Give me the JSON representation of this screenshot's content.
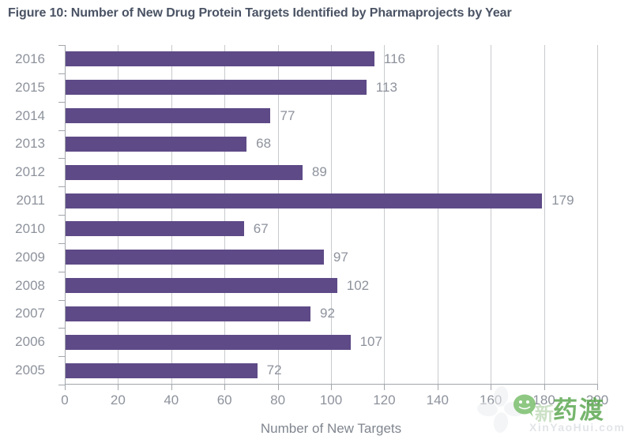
{
  "figure": {
    "title": "Figure 10: Number of New Drug Protein Targets Identified by Pharmaprojects by Year"
  },
  "chart_data": {
    "type": "bar",
    "orientation": "horizontal",
    "title": "Figure 10: Number of New Drug Protein Targets Identified by Pharmaprojects by Year",
    "categories": [
      "2016",
      "2015",
      "2014",
      "2013",
      "2012",
      "2011",
      "2010",
      "2009",
      "2008",
      "2007",
      "2006",
      "2005"
    ],
    "values": [
      116,
      113,
      77,
      68,
      89,
      179,
      67,
      97,
      102,
      92,
      107,
      72
    ],
    "xlabel": "Number of New Targets",
    "ylabel": "",
    "xlim": [
      0,
      200
    ],
    "xticks": [
      0,
      20,
      40,
      60,
      80,
      100,
      120,
      140,
      160,
      180,
      200
    ],
    "grid": "vertical gridlines only",
    "legend": "none",
    "colors": {
      "bar": "#5e4a87",
      "gridline": "#c8cacd",
      "axis": "#a2a6ab",
      "tick_label": "#8d929c",
      "value_label": "#8d929c",
      "title": "#4a5364"
    }
  },
  "watermark": {
    "cn_text": "药渡",
    "faint_cn_text": "新",
    "url_text": "XinYaoHui.com",
    "icon": "wechat-icon",
    "accent_green": "#57a54c"
  }
}
